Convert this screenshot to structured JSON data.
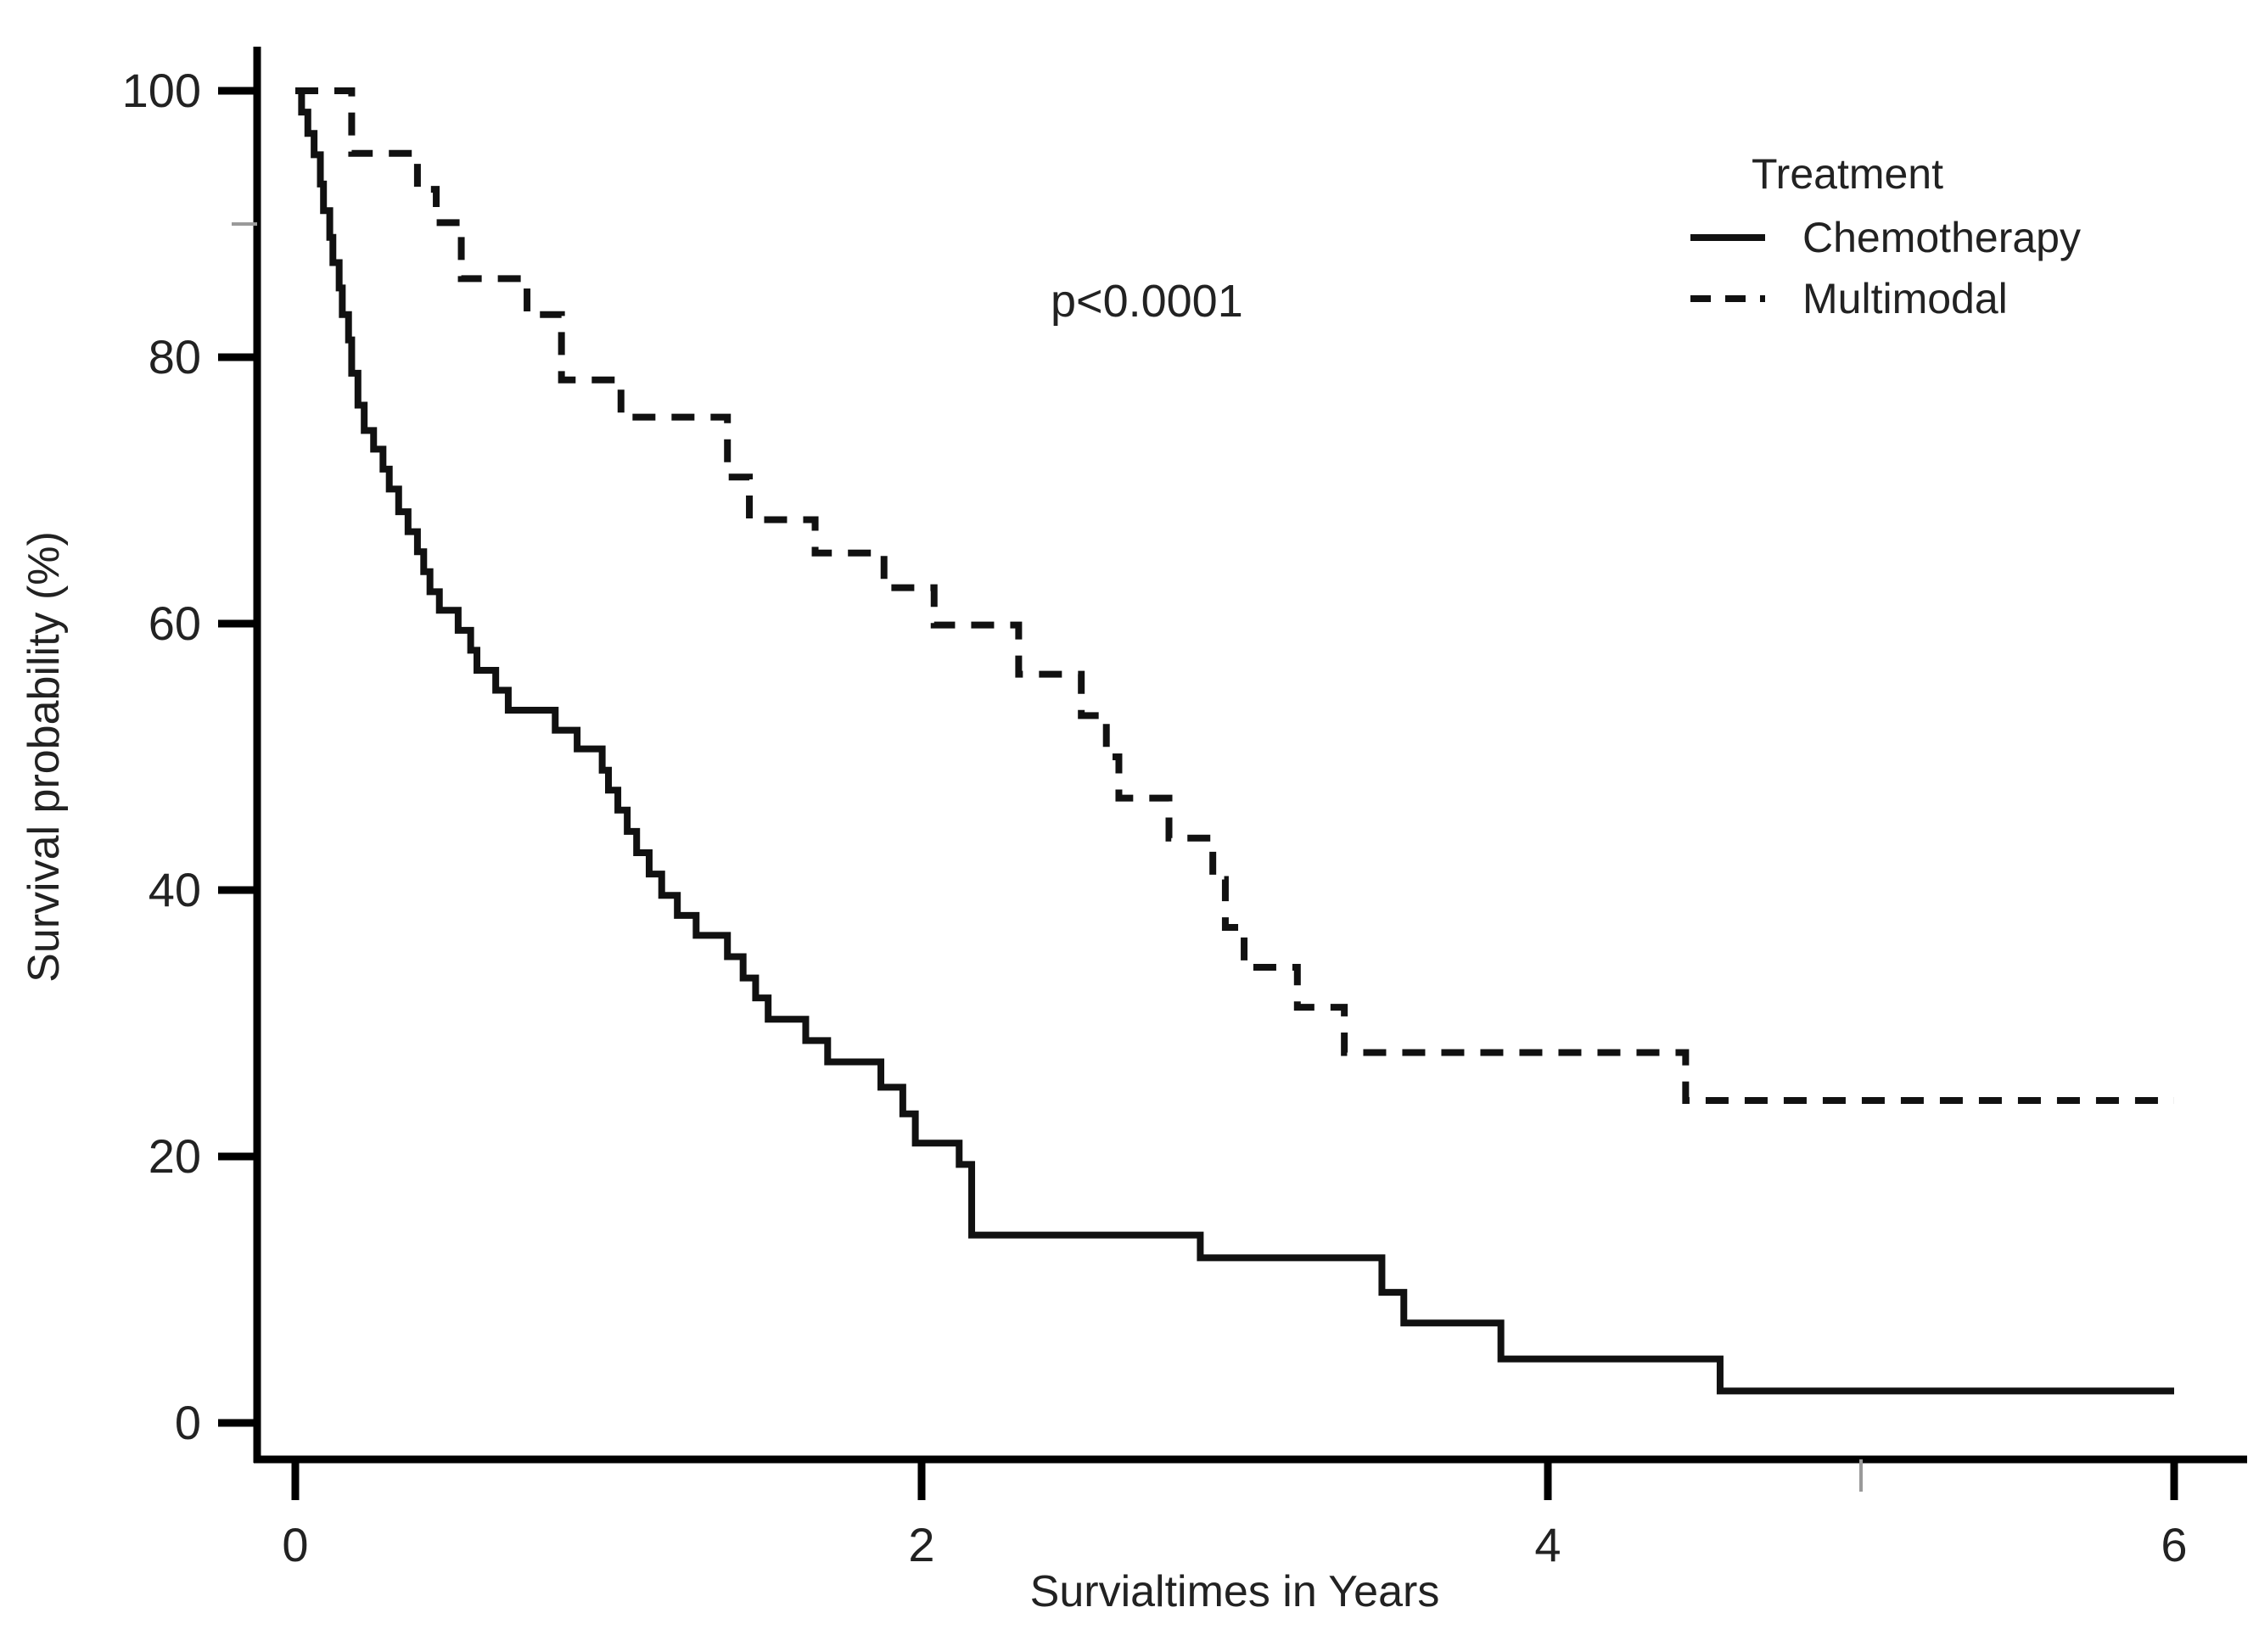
{
  "figure": {
    "x_axis_label": "Survialtimes in Years",
    "y_axis_label": "Survival probability (%)",
    "annotation_text": "p<0.0001",
    "legend": {
      "title": "Treatment",
      "entries": [
        {
          "label": "Chemotherapy",
          "line_style": "solid"
        },
        {
          "label": "Multimodal",
          "line_style": "dashed"
        }
      ]
    }
  },
  "chart_data": {
    "type": "line",
    "subtype": "kaplan_meier_step",
    "title": "",
    "xlabel": "Survialtimes in Years",
    "ylabel": "Survival probability (%)",
    "xlim": [
      0,
      6.05
    ],
    "ylim": [
      0,
      100
    ],
    "x_ticks": [
      0,
      2,
      4,
      6
    ],
    "x_minor_ticks": [
      5
    ],
    "y_ticks": [
      0,
      20,
      40,
      60,
      80,
      100
    ],
    "y_minor_ticks": [
      90
    ],
    "grid": false,
    "legend_position": "upper right",
    "legend_title": "Treatment",
    "annotation": {
      "text": "p<0.0001",
      "x": 2.4,
      "y": 86
    },
    "axis_color": "#000000",
    "curve_color": "#111111",
    "end_time": 6.0,
    "series": [
      {
        "name": "Chemotherapy",
        "style": "solid",
        "step_points": [
          [
            0.0,
            100.0
          ],
          [
            0.02,
            98.4
          ],
          [
            0.04,
            96.8
          ],
          [
            0.06,
            95.2
          ],
          [
            0.08,
            93.0
          ],
          [
            0.09,
            91.0
          ],
          [
            0.11,
            89.0
          ],
          [
            0.12,
            87.1
          ],
          [
            0.14,
            85.2
          ],
          [
            0.15,
            83.2
          ],
          [
            0.17,
            81.3
          ],
          [
            0.18,
            78.8
          ],
          [
            0.2,
            76.4
          ],
          [
            0.22,
            74.5
          ],
          [
            0.25,
            73.1
          ],
          [
            0.28,
            71.6
          ],
          [
            0.3,
            70.1
          ],
          [
            0.33,
            68.4
          ],
          [
            0.36,
            66.9
          ],
          [
            0.39,
            65.4
          ],
          [
            0.41,
            63.9
          ],
          [
            0.43,
            62.4
          ],
          [
            0.46,
            61.0
          ],
          [
            0.52,
            59.5
          ],
          [
            0.56,
            58.0
          ],
          [
            0.58,
            56.5
          ],
          [
            0.64,
            55.0
          ],
          [
            0.68,
            53.5
          ],
          [
            0.83,
            52.0
          ],
          [
            0.9,
            50.6
          ],
          [
            0.98,
            49.0
          ],
          [
            1.0,
            47.5
          ],
          [
            1.03,
            46.0
          ],
          [
            1.06,
            44.4
          ],
          [
            1.09,
            42.8
          ],
          [
            1.13,
            41.2
          ],
          [
            1.17,
            39.6
          ],
          [
            1.22,
            38.1
          ],
          [
            1.28,
            36.6
          ],
          [
            1.38,
            35.0
          ],
          [
            1.43,
            33.4
          ],
          [
            1.47,
            31.9
          ],
          [
            1.51,
            30.3
          ],
          [
            1.63,
            28.7
          ],
          [
            1.7,
            27.1
          ],
          [
            1.87,
            25.2
          ],
          [
            1.94,
            23.2
          ],
          [
            1.98,
            21.0
          ],
          [
            2.12,
            19.4
          ],
          [
            2.16,
            14.1
          ],
          [
            2.89,
            12.4
          ],
          [
            3.47,
            9.8
          ],
          [
            3.54,
            7.5
          ],
          [
            3.85,
            4.8
          ],
          [
            4.55,
            2.4
          ]
        ]
      },
      {
        "name": "Multimodal",
        "style": "dashed",
        "step_points": [
          [
            0.0,
            100.0
          ],
          [
            0.18,
            95.3
          ],
          [
            0.39,
            92.6
          ],
          [
            0.45,
            90.1
          ],
          [
            0.53,
            85.9
          ],
          [
            0.74,
            83.2
          ],
          [
            0.85,
            78.3
          ],
          [
            1.04,
            75.5
          ],
          [
            1.38,
            71.0
          ],
          [
            1.45,
            67.8
          ],
          [
            1.66,
            65.3
          ],
          [
            1.88,
            62.7
          ],
          [
            2.04,
            59.9
          ],
          [
            2.31,
            56.2
          ],
          [
            2.51,
            53.1
          ],
          [
            2.59,
            50.0
          ],
          [
            2.63,
            46.9
          ],
          [
            2.79,
            43.9
          ],
          [
            2.93,
            40.8
          ],
          [
            2.97,
            37.2
          ],
          [
            3.03,
            34.2
          ],
          [
            3.2,
            31.2
          ],
          [
            3.35,
            27.8
          ],
          [
            4.44,
            24.2
          ]
        ]
      }
    ]
  }
}
